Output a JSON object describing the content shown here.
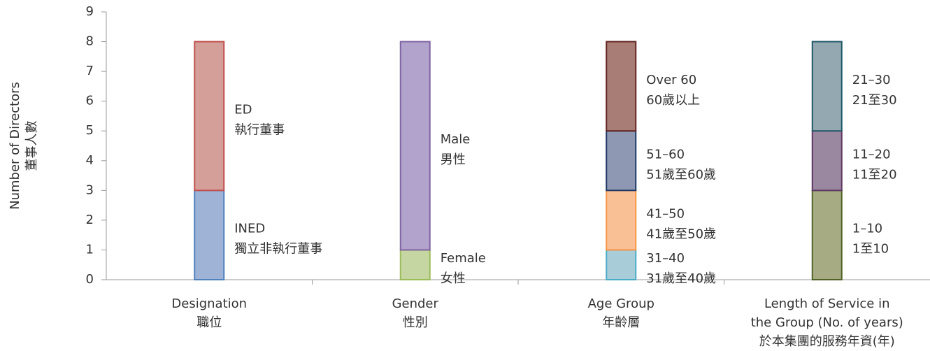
{
  "chart_data": {
    "type": "stacked-bar",
    "y_label": [
      "Number of Directors",
      "董事人數"
    ],
    "ylim": [
      0,
      9
    ],
    "yticks": [
      0,
      1,
      2,
      3,
      4,
      5,
      6,
      7,
      8,
      9
    ],
    "stacks": [
      {
        "label": [
          "Designation",
          "職位"
        ],
        "segments": [
          {
            "label": [
              "INED",
              "獨立非執行董事"
            ],
            "value": 3,
            "color": "#9fb3d6",
            "stroke": "#4f81bd"
          },
          {
            "label": [
              "ED",
              "執行董事"
            ],
            "value": 5,
            "color": "#d49f98",
            "stroke": "#c0504d"
          }
        ]
      },
      {
        "label": [
          "Gender",
          "性別"
        ],
        "segments": [
          {
            "label": [
              "Female",
              "女性"
            ],
            "value": 1,
            "color": "#c6d6a3",
            "stroke": "#9bbb59"
          },
          {
            "label": [
              "Male",
              "男性"
            ],
            "value": 7,
            "color": "#b2a3cc",
            "stroke": "#8064a2"
          }
        ]
      },
      {
        "label": [
          "Age Group",
          "年齡層"
        ],
        "segments": [
          {
            "label": [
              "31–40",
              "31歲至40歲"
            ],
            "value": 1,
            "color": "#a8cdd9",
            "stroke": "#4bacc6"
          },
          {
            "label": [
              "41–50",
              "41歲至50歲"
            ],
            "value": 2,
            "color": "#f9c096",
            "stroke": "#f79646"
          },
          {
            "label": [
              "51–60",
              "51歲至60歲"
            ],
            "value": 2,
            "color": "#8f98b3",
            "stroke": "#1f3864"
          },
          {
            "label": [
              "Over 60",
              "60歲以上"
            ],
            "value": 3,
            "color": "#a87d75",
            "stroke": "#632523"
          }
        ]
      },
      {
        "label": [
          "Length of Service in",
          "the Group (No. of years)",
          "於本集團的服務年資(年)"
        ],
        "segments": [
          {
            "label": [
              "1–10",
              "1至10"
            ],
            "value": 3,
            "color": "#a7ab83",
            "stroke": "#4f6228"
          },
          {
            "label": [
              "11–20",
              "11至20"
            ],
            "value": 2,
            "color": "#9a88a0",
            "stroke": "#5f3763"
          },
          {
            "label": [
              "21–30",
              "21至30"
            ],
            "value": 3,
            "color": "#93a8b0",
            "stroke": "#215968"
          }
        ]
      }
    ]
  }
}
